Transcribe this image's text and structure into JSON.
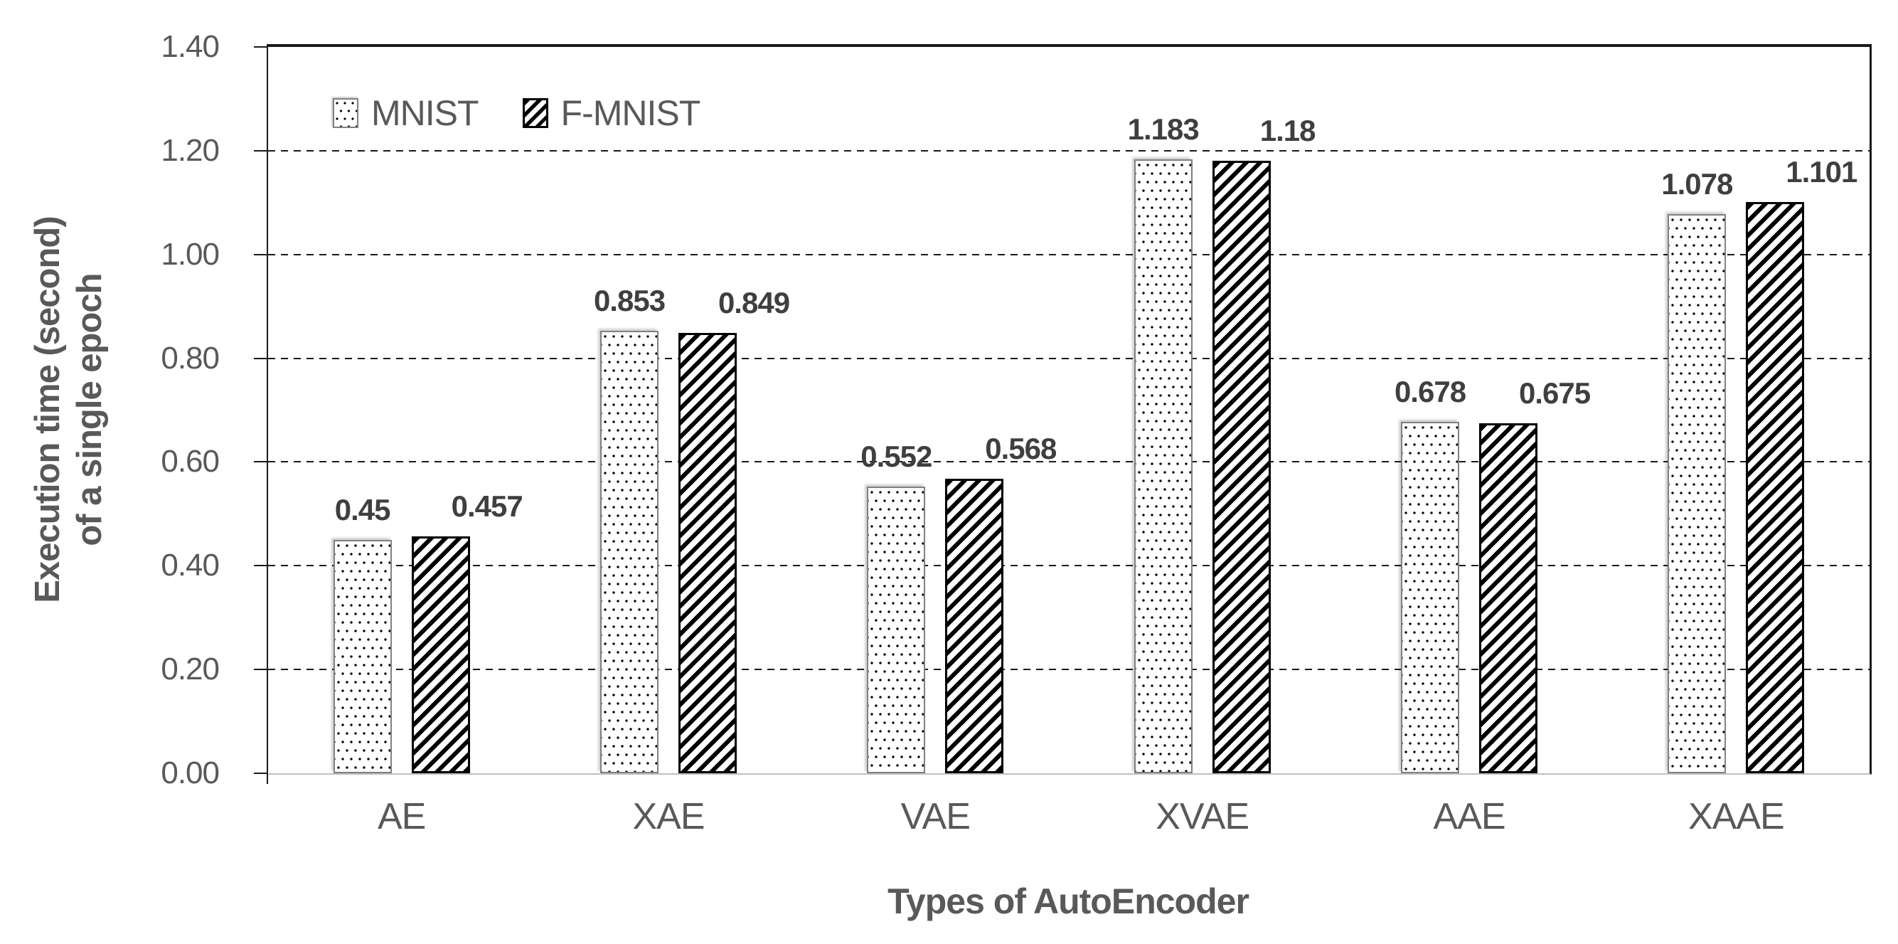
{
  "chart_data": {
    "type": "bar",
    "title": "",
    "categories": [
      "AE",
      "XAE",
      "VAE",
      "XVAE",
      "AAE",
      "XAAE"
    ],
    "series": [
      {
        "name": "MNIST",
        "pattern": "dotted",
        "values": [
          0.45,
          0.853,
          0.552,
          1.183,
          0.678,
          1.078
        ],
        "labels": [
          "0.45",
          "0.853",
          "0.552",
          "1.183",
          "0.678",
          "1.078"
        ]
      },
      {
        "name": "F-MNIST",
        "pattern": "diagonal-hatch",
        "values": [
          0.457,
          0.849,
          0.568,
          1.18,
          0.675,
          1.101
        ],
        "labels": [
          "0.457",
          "0.849",
          "0.568",
          "1.18",
          "0.675",
          "1.101"
        ]
      }
    ],
    "xlabel": "Types of AutoEncoder",
    "ylabel_lines": [
      "Execution time (second)",
      "of a single epoch"
    ],
    "ylim": [
      0,
      1.4
    ],
    "ytick_step": 0.2,
    "yticks": [
      "0.00",
      "0.20",
      "0.40",
      "0.60",
      "0.80",
      "1.00",
      "1.20",
      "1.40"
    ],
    "grid": "horizontal-dashed",
    "legend_position": "top-left-inside"
  },
  "colors": {
    "text_gray": "#595959",
    "data_label_gray": "#3f3f3f",
    "axis_black": "#1a1a1a",
    "baseline_gray": "#bfbfbf",
    "bar_border_gray": "#808080",
    "pattern_black": "#000000",
    "background": "#ffffff"
  }
}
